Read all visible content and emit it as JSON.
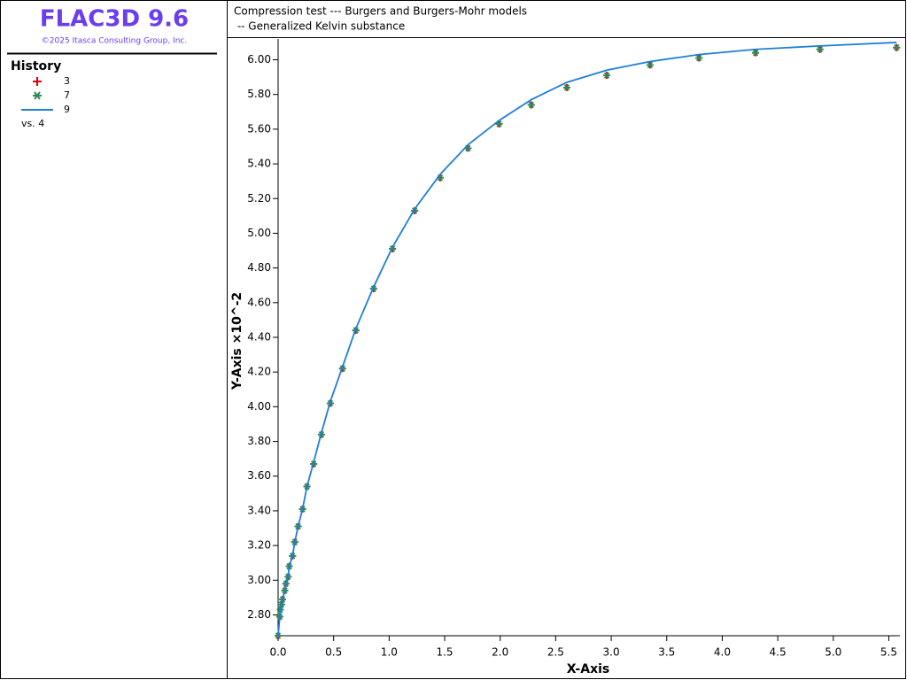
{
  "app": {
    "title": "FLAC3D 9.6",
    "copyright": "©2025 Itasca Consulting Group, Inc."
  },
  "chart_data": {
    "type": "line",
    "title": "Compression test --- Burgers and Burgers-Mohr models",
    "subtitle": " -- Generalized Kelvin substance",
    "x_label": "X-Axis",
    "y_label": "Y-Axis ×10^-2",
    "legend_title": "History",
    "legend_footer": "vs. 4",
    "x": [
      0,
      0.015,
      0.02,
      0.03,
      0.04,
      0.06,
      0.07,
      0.09,
      0.1,
      0.13,
      0.15,
      0.18,
      0.22,
      0.26,
      0.32,
      0.39,
      0.47,
      0.58,
      0.7,
      0.86,
      1.03,
      1.23,
      1.46,
      1.71,
      1.99,
      2.28,
      2.6,
      2.96,
      3.35,
      3.79,
      4.3,
      4.88,
      5.57
    ],
    "series": [
      {
        "name": "3",
        "marker": "plus",
        "color": "#e00000",
        "values": [
          2.68,
          2.79,
          2.83,
          2.86,
          2.89,
          2.94,
          2.98,
          3.02,
          3.08,
          3.14,
          3.22,
          3.31,
          3.41,
          3.54,
          3.67,
          3.84,
          4.02,
          4.22,
          4.44,
          4.68,
          4.91,
          5.13,
          5.32,
          5.49,
          5.63,
          5.74,
          5.84,
          5.91,
          5.97,
          6.01,
          6.04,
          6.06,
          6.07
        ]
      },
      {
        "name": "7",
        "marker": "star",
        "color": "#2e8b57",
        "values": [
          2.68,
          2.79,
          2.83,
          2.86,
          2.89,
          2.94,
          2.98,
          3.02,
          3.08,
          3.14,
          3.22,
          3.31,
          3.41,
          3.54,
          3.67,
          3.84,
          4.02,
          4.22,
          4.44,
          4.68,
          4.91,
          5.13,
          5.32,
          5.49,
          5.63,
          5.74,
          5.84,
          5.91,
          5.97,
          6.01,
          6.04,
          6.06,
          6.07
        ]
      },
      {
        "name": "9",
        "marker": "line",
        "color": "#1f7fd6",
        "values": [
          2.68,
          2.79,
          2.83,
          2.86,
          2.89,
          2.94,
          2.98,
          3.02,
          3.08,
          3.14,
          3.22,
          3.31,
          3.41,
          3.54,
          3.68,
          3.85,
          4.03,
          4.23,
          4.45,
          4.69,
          4.92,
          5.14,
          5.34,
          5.51,
          5.65,
          5.77,
          5.87,
          5.94,
          5.99,
          6.03,
          6.06,
          6.08,
          6.1
        ]
      }
    ],
    "xlim": [
      0,
      5.6
    ],
    "ylim": [
      2.68,
      6.12
    ],
    "xticks": [
      {
        "value": 0,
        "label": "0.0"
      },
      0.5,
      {
        "value": 1,
        "label": "1.0"
      },
      1.5,
      {
        "value": 2,
        "label": "2.0"
      },
      2.5,
      {
        "value": 3,
        "label": "3.0"
      },
      3.5,
      {
        "value": 4,
        "label": "4.0"
      },
      4.5,
      {
        "value": 5,
        "label": "5.0"
      },
      5.5
    ],
    "yticks": [
      {
        "value": 2.8,
        "label": "2.80"
      },
      {
        "value": 3,
        "label": "3.00"
      },
      {
        "value": 3.2,
        "label": "3.20"
      },
      {
        "value": 3.4,
        "label": "3.40"
      },
      {
        "value": 3.6,
        "label": "3.60"
      },
      {
        "value": 3.8,
        "label": "3.80"
      },
      {
        "value": 4,
        "label": "4.00"
      },
      {
        "value": 4.2,
        "label": "4.20"
      },
      {
        "value": 4.4,
        "label": "4.40"
      },
      {
        "value": 4.6,
        "label": "4.60"
      },
      {
        "value": 4.8,
        "label": "4.80"
      },
      {
        "value": 5,
        "label": "5.00"
      },
      {
        "value": 5.2,
        "label": "5.20"
      },
      {
        "value": 5.4,
        "label": "5.40"
      },
      {
        "value": 5.6,
        "label": "5.60"
      },
      {
        "value": 5.8,
        "label": "5.80"
      },
      {
        "value": 6,
        "label": "6.00"
      }
    ]
  }
}
